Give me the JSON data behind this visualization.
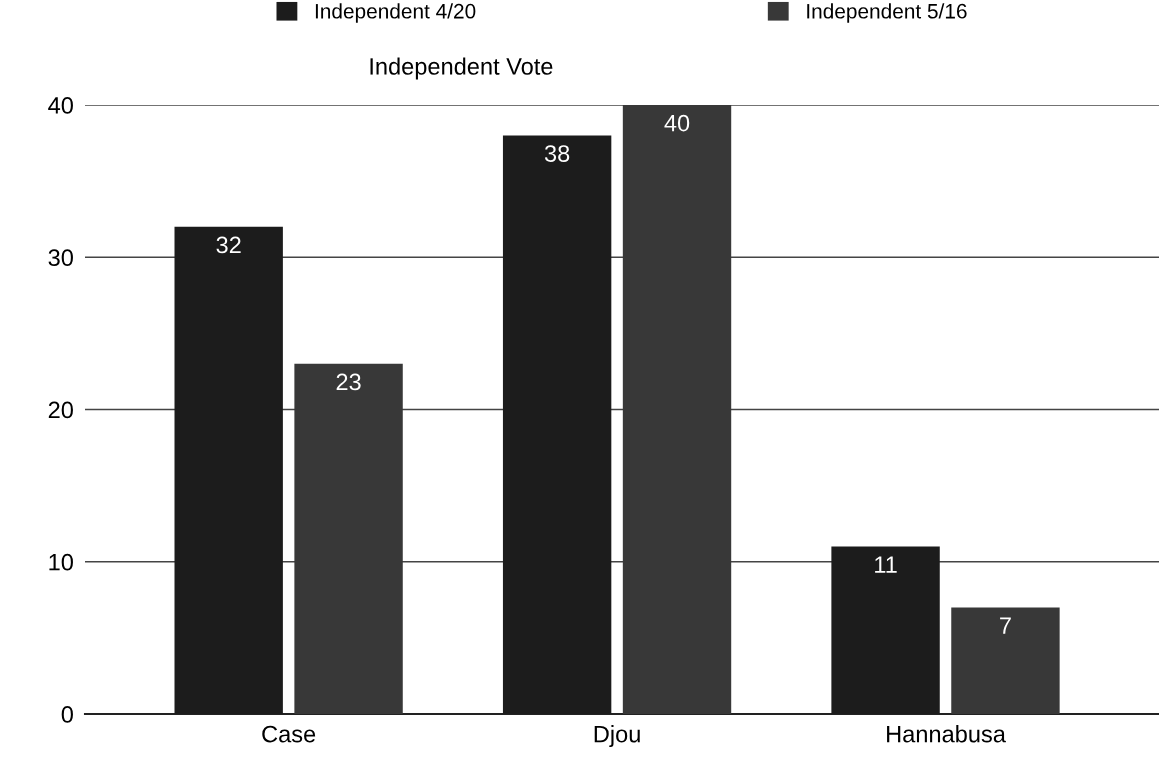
{
  "chart_data": {
    "type": "bar",
    "title": "Independent Vote",
    "categories": [
      "Case",
      "Djou",
      "Hannabusa"
    ],
    "series": [
      {
        "name": "Independent 4/20",
        "color": "#1c1c1c",
        "values": [
          32,
          38,
          11
        ]
      },
      {
        "name": "Independent 5/16",
        "color": "#383838",
        "values": [
          23,
          40,
          7
        ]
      }
    ],
    "ylim": [
      0,
      40
    ],
    "yticks": [
      0,
      10,
      20,
      30,
      40
    ],
    "grid": "y",
    "legend": "top",
    "data_labels": true
  }
}
